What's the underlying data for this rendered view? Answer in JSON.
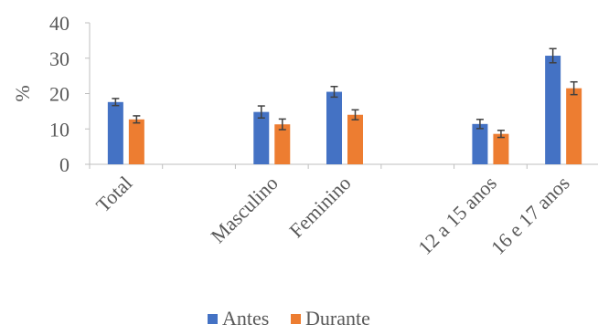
{
  "chart_data": {
    "type": "bar",
    "title": "",
    "xlabel": "",
    "ylabel": "%",
    "ylim": [
      0,
      40
    ],
    "yticks": [
      0,
      10,
      20,
      30,
      40
    ],
    "categories": [
      "Total",
      "",
      "Masculino",
      "Feminino",
      "",
      "12 a 15 anos",
      "16 e 17 anos"
    ],
    "series": [
      {
        "name": "Antes",
        "color": "#4472C4",
        "values": [
          17.6,
          null,
          14.8,
          20.5,
          null,
          11.4,
          30.7
        ],
        "error": [
          1.0,
          null,
          1.7,
          1.5,
          null,
          1.3,
          2.0
        ]
      },
      {
        "name": "Durante",
        "color": "#ED7D31",
        "values": [
          12.7,
          null,
          11.3,
          14.0,
          null,
          8.6,
          21.5
        ],
        "error": [
          1.0,
          null,
          1.5,
          1.4,
          null,
          1.0,
          1.8
        ]
      }
    ],
    "grid": false,
    "legend": "bottom",
    "error_bars": true
  }
}
